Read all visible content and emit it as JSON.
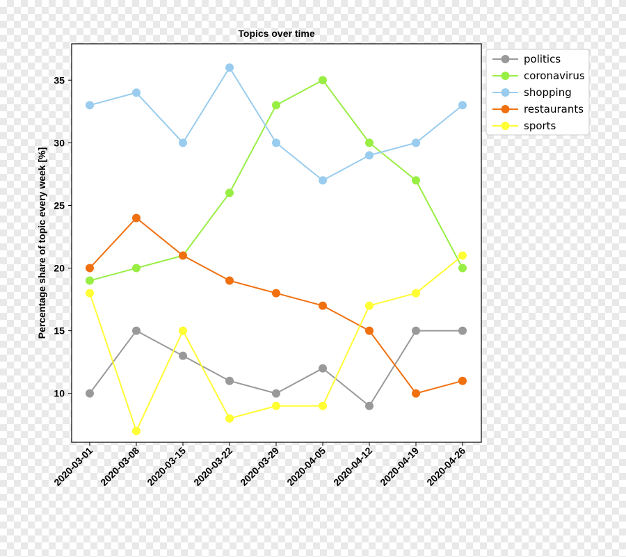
{
  "chart_data": {
    "type": "line",
    "title": "Topics over time",
    "xlabel": "",
    "ylabel": "Percentage share of topic every week [%]",
    "x": [
      "2020-03-01",
      "2020-03-08",
      "2020-03-15",
      "2020-03-22",
      "2020-03-29",
      "2020-04-05",
      "2020-04-12",
      "2020-04-19",
      "2020-04-26"
    ],
    "yticks": [
      10,
      15,
      20,
      25,
      30,
      35
    ],
    "ylim": [
      6.1,
      37.9
    ],
    "grid": false,
    "legend_position": "upper right, outside plot",
    "series": [
      {
        "name": "politics",
        "color": "#999999",
        "values": [
          10,
          15,
          13,
          11,
          10,
          12,
          9,
          15,
          15
        ]
      },
      {
        "name": "coronavirus",
        "color": "#99ee44",
        "values": [
          19,
          20,
          21,
          26,
          33,
          35,
          30,
          27,
          20
        ]
      },
      {
        "name": "shopping",
        "color": "#99ccee",
        "values": [
          33,
          34,
          30,
          36,
          30,
          27,
          29,
          30,
          33
        ]
      },
      {
        "name": "restaurants",
        "color": "#f07010",
        "values": [
          20,
          24,
          21,
          19,
          18,
          17,
          15,
          10,
          11
        ]
      },
      {
        "name": "sports",
        "color": "#ffff33",
        "values": [
          18,
          7,
          15,
          8,
          9,
          9,
          17,
          18,
          21
        ]
      }
    ]
  }
}
